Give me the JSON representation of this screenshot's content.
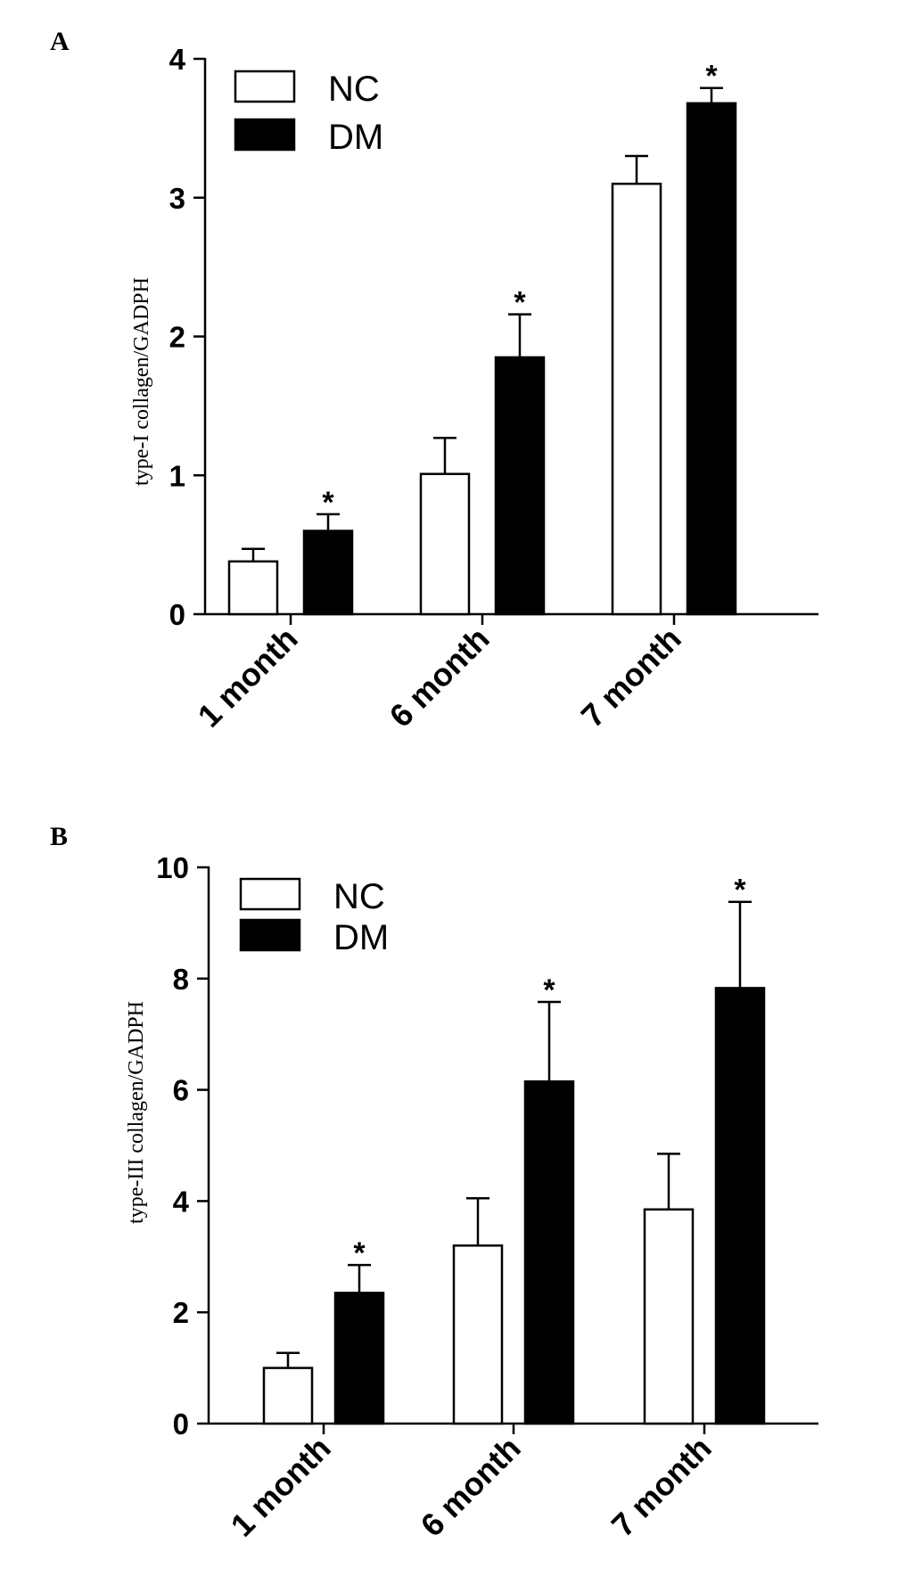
{
  "chart_data": [
    {
      "panel": "A",
      "type": "bar",
      "categories": [
        "1 month",
        "6 month",
        "7 month"
      ],
      "ylabel": "type-I collagen/GADPH",
      "xlabel": "",
      "ylim": [
        0,
        4
      ],
      "yticks": [
        "0",
        "1",
        "2",
        "3",
        "4"
      ],
      "legend": {
        "placement": "top-left"
      },
      "series": [
        {
          "name": "NC",
          "color": "#ffffff",
          "values": [
            0.38,
            1.01,
            3.1
          ],
          "errors": [
            0.09,
            0.26,
            0.2
          ],
          "significant": [
            false,
            false,
            false
          ]
        },
        {
          "name": "DM",
          "color": "#000000",
          "values": [
            0.6,
            1.85,
            3.68
          ],
          "errors": [
            0.12,
            0.31,
            0.11
          ],
          "significant": [
            true,
            true,
            true
          ]
        }
      ],
      "significance_marker": "*"
    },
    {
      "panel": "B",
      "type": "bar",
      "categories": [
        "1 month",
        "6 month",
        "7 month"
      ],
      "ylabel": "type-III collagen/GADPH",
      "xlabel": "",
      "ylim": [
        0,
        10
      ],
      "yticks": [
        "0",
        "2",
        "4",
        "6",
        "8",
        "10"
      ],
      "legend": {
        "placement": "top-left"
      },
      "series": [
        {
          "name": "NC",
          "color": "#ffffff",
          "values": [
            1.0,
            3.2,
            3.85
          ],
          "errors": [
            0.27,
            0.85,
            1.0
          ],
          "significant": [
            false,
            false,
            false
          ]
        },
        {
          "name": "DM",
          "color": "#000000",
          "values": [
            2.35,
            6.15,
            7.83
          ],
          "errors": [
            0.5,
            1.43,
            1.55
          ],
          "significant": [
            true,
            true,
            true
          ]
        }
      ],
      "significance_marker": "*"
    }
  ]
}
